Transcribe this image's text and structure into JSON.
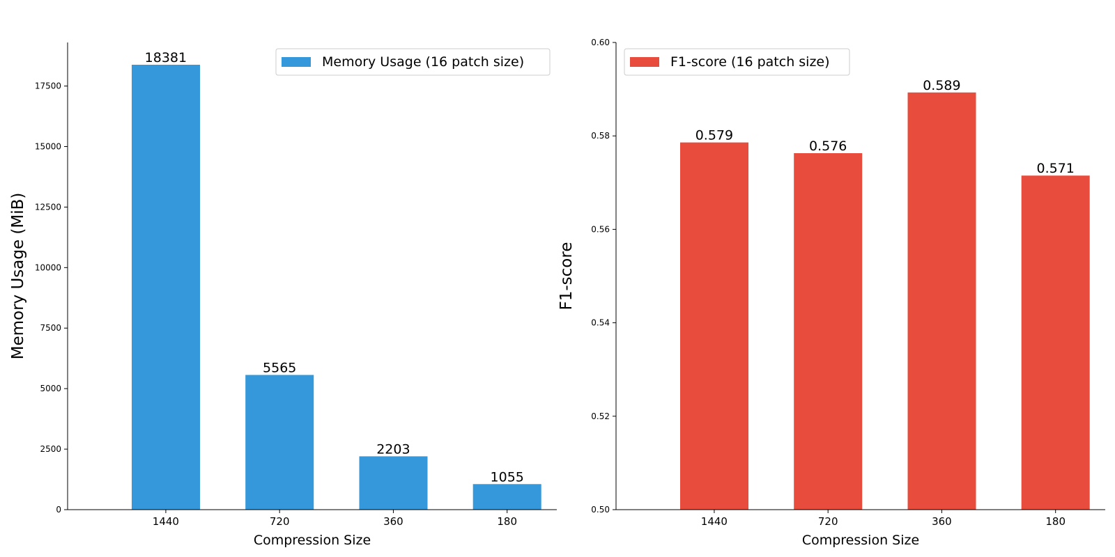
{
  "chart_data": [
    {
      "type": "bar",
      "categories": [
        "1440",
        "720",
        "360",
        "180"
      ],
      "series": [
        {
          "name": "Memory Usage (16 patch size)",
          "values": [
            18381,
            5565,
            2203,
            1055
          ],
          "color": "#3498db"
        }
      ],
      "bar_labels": [
        "18381",
        "5565",
        "2203",
        "1055"
      ],
      "xlabel": "Compression Size",
      "ylabel": "Memory Usage (MiB)",
      "ylim": [
        0,
        19300
      ],
      "yticks": [
        0,
        2500,
        5000,
        7500,
        10000,
        12500,
        15000,
        17500
      ],
      "ytick_labels": [
        "0",
        "2500",
        "5000",
        "7500",
        "10000",
        "12500",
        "15000",
        "17500"
      ],
      "legend_position": "top-right",
      "grid": false
    },
    {
      "type": "bar",
      "categories": [
        "1440",
        "720",
        "360",
        "180"
      ],
      "series": [
        {
          "name": "F1-score (16 patch size)",
          "values": [
            0.5786,
            0.5763,
            0.5893,
            0.5715
          ],
          "color": "#e74c3c"
        }
      ],
      "bar_labels": [
        "0.579",
        "0.576",
        "0.589",
        "0.571"
      ],
      "xlabel": "Compression Size",
      "ylabel": "F1-score",
      "ylim": [
        0.5,
        0.6
      ],
      "yticks": [
        0.5,
        0.52,
        0.54,
        0.56,
        0.58,
        0.6
      ],
      "ytick_labels": [
        "0.50",
        "0.52",
        "0.54",
        "0.56",
        "0.58",
        "0.60"
      ],
      "legend_position": "top-left",
      "grid": false
    }
  ]
}
